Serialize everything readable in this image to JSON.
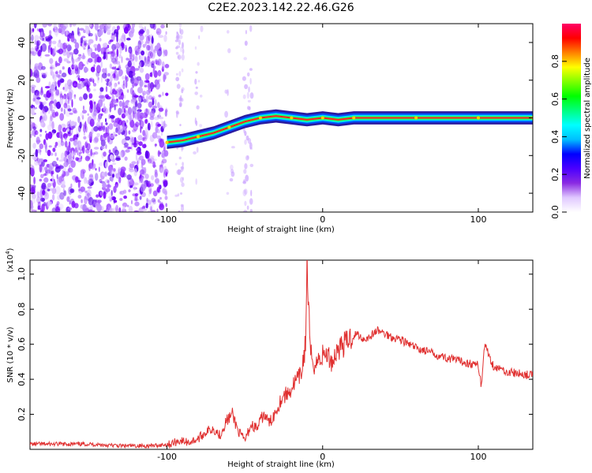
{
  "title": "C2E2.2023.142.22.46.G26",
  "chart_data": [
    {
      "type": "heatmap",
      "xlabel": "Height of straight line (km)",
      "ylabel": "Frequency (Hz)",
      "xlim": [
        -188,
        135
      ],
      "ylim": [
        -50,
        50
      ],
      "x_ticks": [
        "-100",
        "0",
        "100"
      ],
      "y_ticks": [
        "-40",
        "-20",
        "0",
        "20",
        "40"
      ],
      "colorbar": {
        "label": "Normalized spectral amplitude",
        "range": [
          0,
          1
        ],
        "ticks": [
          "0.0",
          "0.2",
          "0.4",
          "0.6",
          "0.8"
        ],
        "colormap": [
          "#ffffff",
          "#e0c8ff",
          "#8a2be2",
          "#4b00ff",
          "#0000ff",
          "#00bfff",
          "#00ffff",
          "#00ff80",
          "#00ff00",
          "#80ff00",
          "#ffff00",
          "#ff8000",
          "#ff0000",
          "#ff0066"
        ]
      },
      "ridge": {
        "x": [
          -100,
          -90,
          -80,
          -70,
          -60,
          -50,
          -40,
          -30,
          -20,
          -10,
          0,
          10,
          20,
          40,
          60,
          80,
          100,
          120,
          135
        ],
        "y": [
          -13,
          -12,
          -10,
          -8,
          -5,
          -2,
          0,
          1,
          0,
          -1,
          0,
          -1,
          0,
          0,
          0,
          0,
          0,
          0,
          0
        ]
      }
    },
    {
      "type": "line",
      "xlabel": "Height of straight line (km)",
      "ylabel": "SNR (10 * v/v)",
      "y_scale_label": "(x10",
      "y_scale_exp": "4",
      "y_scale_close": ")",
      "xlim": [
        -188,
        135
      ],
      "ylim": [
        0,
        1.08
      ],
      "x_ticks": [
        "-100",
        "0",
        "100"
      ],
      "y_ticks": [
        "0.2",
        "0.4",
        "0.6",
        "0.8",
        "1.0"
      ],
      "color": "#e03030",
      "series": [
        {
          "x": [
            -188,
            -170,
            -150,
            -130,
            -110,
            -98,
            -92,
            -86,
            -80,
            -75,
            -70,
            -66,
            -62,
            -58,
            -54,
            -50,
            -46,
            -42,
            -38,
            -34,
            -30,
            -26,
            -22,
            -18,
            -14,
            -11,
            -10,
            -8,
            -5,
            -2,
            2,
            6,
            10,
            14,
            18,
            22,
            26,
            30,
            35,
            40,
            45,
            50,
            55,
            60,
            70,
            80,
            90,
            100,
            102,
            104,
            110,
            120,
            135
          ],
          "y": [
            0.03,
            0.03,
            0.03,
            0.02,
            0.02,
            0.03,
            0.05,
            0.04,
            0.06,
            0.1,
            0.12,
            0.08,
            0.16,
            0.2,
            0.1,
            0.05,
            0.14,
            0.12,
            0.2,
            0.15,
            0.22,
            0.3,
            0.32,
            0.38,
            0.42,
            0.6,
            1.06,
            0.55,
            0.48,
            0.52,
            0.55,
            0.5,
            0.58,
            0.6,
            0.64,
            0.66,
            0.63,
            0.64,
            0.68,
            0.66,
            0.64,
            0.63,
            0.6,
            0.58,
            0.55,
            0.52,
            0.5,
            0.48,
            0.36,
            0.6,
            0.47,
            0.44,
            0.42
          ]
        }
      ]
    }
  ]
}
